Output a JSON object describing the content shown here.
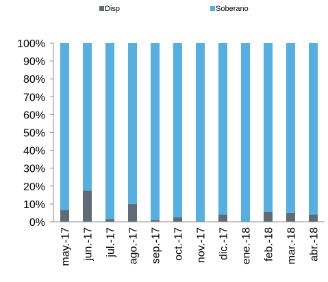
{
  "chart_data": {
    "type": "bar",
    "stacked": true,
    "percent": true,
    "categories": [
      "may.-17",
      "jun.-17",
      "jul.-17",
      "ago.-17",
      "sep.-17",
      "oct.-17",
      "nov.-17",
      "dic.-17",
      "ene.-18",
      "feb.-18",
      "mar.-18",
      "abr.-18"
    ],
    "series": [
      {
        "name": "Disp",
        "color": "#5f6b76",
        "values": [
          6.5,
          17.5,
          1.5,
          10,
          1,
          2.5,
          0,
          4,
          0,
          5.5,
          5,
          4
        ]
      },
      {
        "name": "Soberano",
        "color": "#56afe1",
        "values": [
          93.5,
          82.5,
          98.5,
          90,
          99,
          97.5,
          100,
          96,
          100,
          94.5,
          95,
          96
        ]
      }
    ],
    "yticks": [
      "0%",
      "10%",
      "20%",
      "30%",
      "40%",
      "50%",
      "60%",
      "70%",
      "80%",
      "90%",
      "100%"
    ],
    "ylim": [
      0,
      100
    ],
    "legend_position": "top",
    "title": "",
    "xlabel": "",
    "ylabel": ""
  }
}
